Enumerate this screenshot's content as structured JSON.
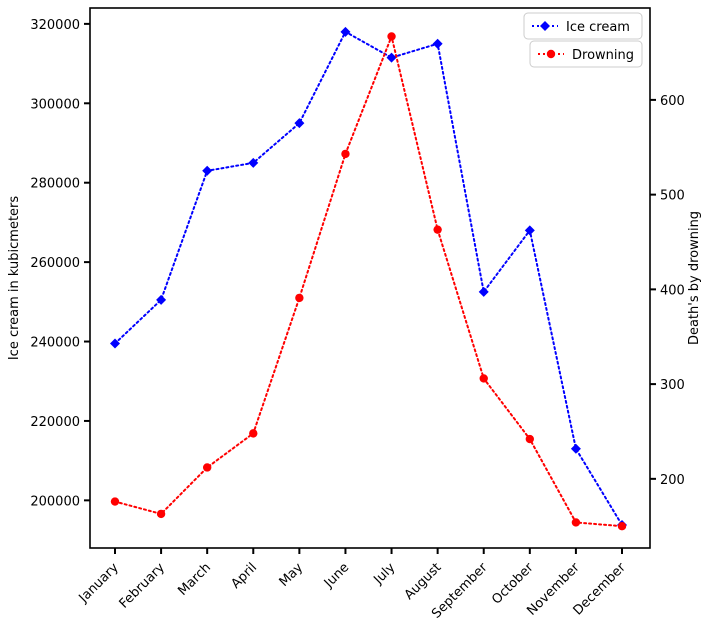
{
  "chart_data": {
    "type": "line",
    "categories": [
      "January",
      "February",
      "March",
      "April",
      "May",
      "June",
      "July",
      "August",
      "September",
      "October",
      "November",
      "December"
    ],
    "series": [
      {
        "name": "Ice cream",
        "axis": "left",
        "color": "#0000ff",
        "marker": "diamond",
        "values": [
          239500,
          250500,
          283000,
          285000,
          295000,
          318000,
          311500,
          315000,
          252500,
          268000,
          213000,
          193800
        ]
      },
      {
        "name": "Drowning",
        "axis": "right",
        "color": "#ff0000",
        "marker": "circle",
        "values": [
          176,
          163,
          212,
          248,
          391,
          543,
          667,
          463,
          306,
          242,
          154,
          150
        ]
      }
    ],
    "ylabel": "Ice cream in kubicmeters",
    "y2label": "Death's by drowning",
    "xlabel": "",
    "ylim": [
      188000,
      324000
    ],
    "y2lim": [
      127,
      697
    ],
    "yticks": [
      200000,
      220000,
      240000,
      260000,
      280000,
      300000,
      320000
    ],
    "y2ticks": [
      200,
      300,
      400,
      500,
      600
    ],
    "grid": false,
    "legend_position": "top-right"
  }
}
